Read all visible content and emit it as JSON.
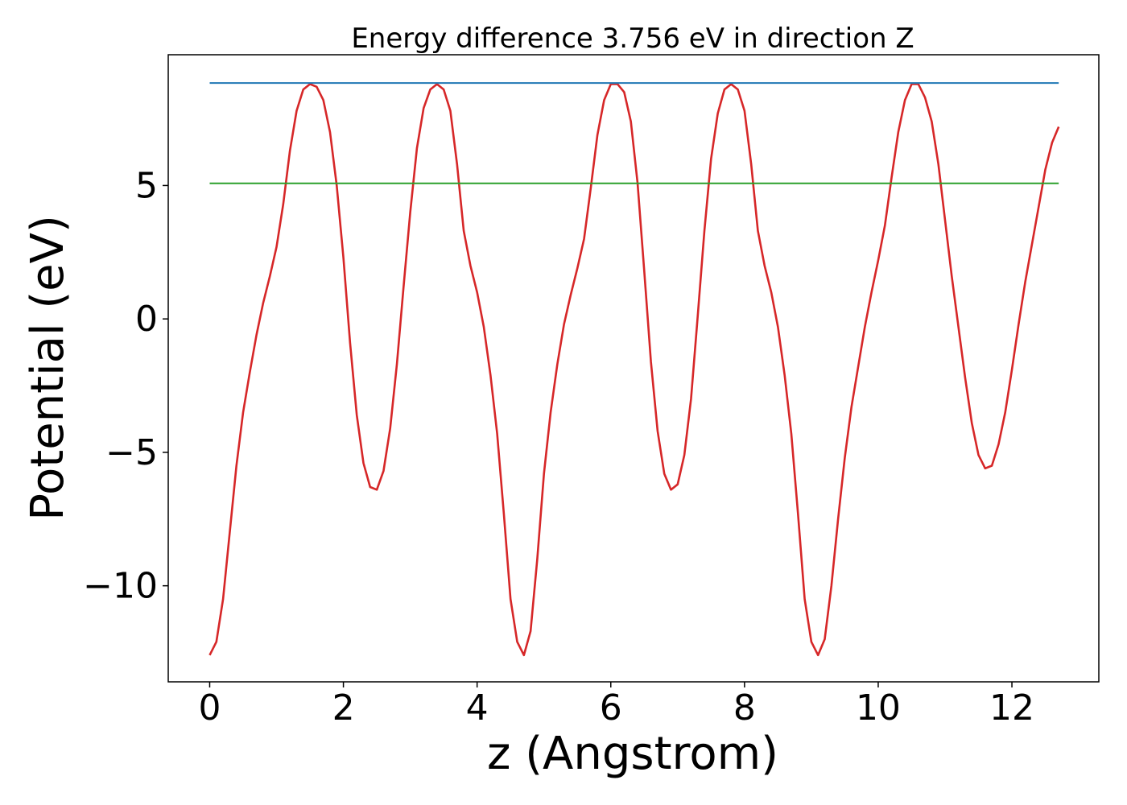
{
  "chart_data": {
    "type": "line",
    "title": "Energy difference 3.756 eV in direction Z",
    "xlabel": "z (Angstrom)",
    "ylabel": "Potential (eV)",
    "xlim": [
      -0.62,
      13.3
    ],
    "ylim": [
      -13.6,
      9.9
    ],
    "xticks": [
      0,
      2,
      4,
      6,
      8,
      10,
      12
    ],
    "xtick_labels": [
      "0",
      "2",
      "4",
      "6",
      "8",
      "10",
      "12"
    ],
    "yticks": [
      -10,
      -5,
      0,
      5
    ],
    "ytick_labels": [
      "−10",
      "−5",
      "0",
      "5"
    ],
    "grid": false,
    "legend": false,
    "series": [
      {
        "color": "#d62728",
        "x": [
          0.0,
          0.1,
          0.2,
          0.3,
          0.4,
          0.5,
          0.6,
          0.7,
          0.8,
          0.9,
          1.0,
          1.1,
          1.2,
          1.3,
          1.4,
          1.5,
          1.6,
          1.7,
          1.8,
          1.9,
          2.0,
          2.1,
          2.2,
          2.3,
          2.4,
          2.5,
          2.6,
          2.7,
          2.8,
          2.9,
          3.0,
          3.1,
          3.2,
          3.3,
          3.4,
          3.5,
          3.6,
          3.7,
          3.8,
          3.9,
          4.0,
          4.1,
          4.2,
          4.3,
          4.4,
          4.5,
          4.6,
          4.7,
          4.8,
          4.9,
          5.0,
          5.1,
          5.2,
          5.3,
          5.4,
          5.5,
          5.6,
          5.7,
          5.8,
          5.9,
          6.0,
          6.1,
          6.2,
          6.3,
          6.4,
          6.5,
          6.6,
          6.7,
          6.8,
          6.9,
          7.0,
          7.1,
          7.2,
          7.3,
          7.4,
          7.5,
          7.6,
          7.7,
          7.8,
          7.9,
          8.0,
          8.1,
          8.2,
          8.3,
          8.4,
          8.5,
          8.6,
          8.7,
          8.8,
          8.9,
          9.0,
          9.1,
          9.2,
          9.3,
          9.4,
          9.5,
          9.6,
          9.7,
          9.8,
          9.9,
          10.0,
          10.1,
          10.2,
          10.3,
          10.4,
          10.5,
          10.6,
          10.7,
          10.8,
          10.9,
          11.0,
          11.1,
          11.2,
          11.3,
          11.4,
          11.5,
          11.6,
          11.7,
          11.8,
          11.9,
          12.0,
          12.1,
          12.2,
          12.3,
          12.4,
          12.5,
          12.6,
          12.7
        ],
        "y": [
          -12.6,
          -12.1,
          -10.5,
          -8.0,
          -5.5,
          -3.5,
          -2.0,
          -0.6,
          0.6,
          1.6,
          2.7,
          4.3,
          6.3,
          7.8,
          8.6,
          8.8,
          8.7,
          8.2,
          7.0,
          5.0,
          2.3,
          -0.9,
          -3.6,
          -5.4,
          -6.3,
          -6.4,
          -5.7,
          -4.1,
          -1.7,
          1.2,
          4.0,
          6.4,
          7.9,
          8.6,
          8.8,
          8.6,
          7.8,
          5.8,
          3.3,
          2.0,
          1.0,
          -0.3,
          -2.1,
          -4.3,
          -7.3,
          -10.5,
          -12.1,
          -12.6,
          -11.7,
          -9.0,
          -5.8,
          -3.5,
          -1.7,
          -0.2,
          0.9,
          1.9,
          3.0,
          4.9,
          6.9,
          8.2,
          8.8,
          8.8,
          8.5,
          7.4,
          5.1,
          1.8,
          -1.6,
          -4.2,
          -5.8,
          -6.4,
          -6.2,
          -5.1,
          -3.0,
          0.1,
          3.3,
          6.0,
          7.7,
          8.6,
          8.8,
          8.6,
          7.8,
          5.8,
          3.3,
          2.0,
          1.0,
          -0.3,
          -2.1,
          -4.3,
          -7.3,
          -10.5,
          -12.1,
          -12.6,
          -12.0,
          -10.0,
          -7.5,
          -5.2,
          -3.3,
          -1.8,
          -0.3,
          1.0,
          2.2,
          3.5,
          5.3,
          7.0,
          8.2,
          8.8,
          8.8,
          8.3,
          7.4,
          5.8,
          3.7,
          1.6,
          -0.3,
          -2.2,
          -3.9,
          -5.1,
          -5.6,
          -5.5,
          -4.7,
          -3.5,
          -1.9,
          -0.2,
          1.4,
          2.8,
          4.2,
          5.6,
          6.6,
          7.2
        ]
      },
      {
        "color": "#1f77b4",
        "x": [
          0.0,
          12.7
        ],
        "y": [
          8.84,
          8.84
        ]
      },
      {
        "color": "#2ca02c",
        "x": [
          0.0,
          12.7
        ],
        "y": [
          5.08,
          5.08
        ]
      }
    ]
  }
}
